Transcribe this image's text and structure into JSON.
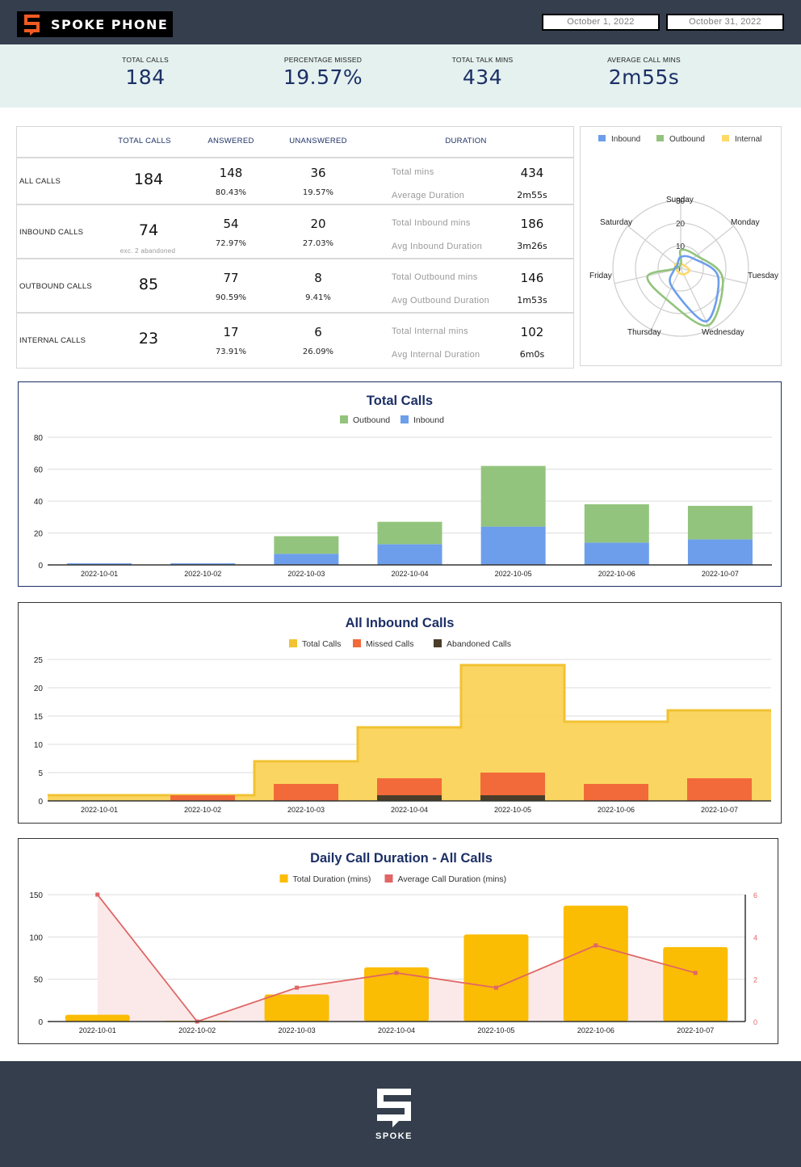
{
  "brand": {
    "name": "SPOKE PHONE",
    "footer_name": "SPOKE",
    "accent": "#f05a22"
  },
  "date_range": {
    "start": "October 1, 2022",
    "end": "October 31, 2022"
  },
  "kpis": [
    {
      "label": "TOTAL CALLS",
      "value": "184"
    },
    {
      "label": "PERCENTAGE MISSED",
      "value": "19.57%"
    },
    {
      "label": "TOTAL TALK MINS",
      "value": "434"
    },
    {
      "label": "AVERAGE CALL MINS",
      "value": "2m55s"
    }
  ],
  "table": {
    "headers": {
      "total": "TOTAL CALLS",
      "answered": "ANSWERED",
      "unanswered": "UNANSWERED",
      "duration": "DURATION"
    },
    "rows": [
      {
        "label": "ALL CALLS",
        "total": "184",
        "note": "",
        "answered": "148",
        "answered_pct": "80.43%",
        "unanswered": "36",
        "unanswered_pct": "19.57%",
        "mins_label": "Total mins",
        "mins": "434",
        "avg_label": "Average Duration",
        "avg": "2m55s"
      },
      {
        "label": "INBOUND CALLS",
        "total": "74",
        "note": "exc. 2 abandoned",
        "answered": "54",
        "answered_pct": "72.97%",
        "unanswered": "20",
        "unanswered_pct": "27.03%",
        "mins_label": "Total Inbound mins",
        "mins": "186",
        "avg_label": "Avg Inbound Duration",
        "avg": "3m26s"
      },
      {
        "label": "OUTBOUND CALLS",
        "total": "85",
        "note": "",
        "answered": "77",
        "answered_pct": "90.59%",
        "unanswered": "8",
        "unanswered_pct": "9.41%",
        "mins_label": "Total Outbound mins",
        "mins": "146",
        "avg_label": "Avg Outbound Duration",
        "avg": "1m53s"
      },
      {
        "label": "INTERNAL CALLS",
        "total": "23",
        "note": "",
        "answered": "17",
        "answered_pct": "73.91%",
        "unanswered": "6",
        "unanswered_pct": "26.09%",
        "mins_label": "Total Internal mins",
        "mins": "102",
        "avg_label": "Avg Internal Duration",
        "avg": "6m0s"
      }
    ]
  },
  "chart_data": [
    {
      "type": "radar",
      "title": "",
      "categories": [
        "Sunday",
        "Monday",
        "Tuesday",
        "Wednesday",
        "Thursday",
        "Friday",
        "Saturday"
      ],
      "rticks": [
        "0",
        "10",
        "20",
        "30"
      ],
      "rlim": [
        0,
        30
      ],
      "legend": "top",
      "series": [
        {
          "name": "Inbound",
          "color": "#6d9eeb",
          "values": [
            5,
            7,
            17,
            26,
            9,
            3,
            2
          ]
        },
        {
          "name": "Outbound",
          "color": "#93c47d",
          "values": [
            8,
            9,
            19,
            28,
            15,
            15,
            1
          ]
        },
        {
          "name": "Internal",
          "color": "#ffd966",
          "values": [
            2,
            2,
            4,
            3,
            2,
            2,
            3
          ]
        }
      ]
    },
    {
      "type": "bar",
      "stacked": true,
      "title": "Total Calls",
      "categories": [
        "2022-10-01",
        "2022-10-02",
        "2022-10-03",
        "2022-10-04",
        "2022-10-05",
        "2022-10-06",
        "2022-10-07"
      ],
      "yticks": [
        "0",
        "20",
        "40",
        "60",
        "80"
      ],
      "ylim": [
        0,
        80
      ],
      "legend": "top",
      "series": [
        {
          "name": "Inbound",
          "color": "#6d9eeb",
          "values": [
            1,
            1,
            7,
            13,
            24,
            14,
            16
          ]
        },
        {
          "name": "Outbound",
          "color": "#93c47d",
          "values": [
            0,
            0,
            11,
            14,
            38,
            24,
            21
          ]
        }
      ],
      "legend_order": [
        "Outbound",
        "Inbound"
      ]
    },
    {
      "type": "area",
      "title": "All Inbound Calls",
      "categories": [
        "2022-10-01",
        "2022-10-02",
        "2022-10-03",
        "2022-10-04",
        "2022-10-05",
        "2022-10-06",
        "2022-10-07"
      ],
      "yticks": [
        "0",
        "5",
        "10",
        "15",
        "20",
        "25"
      ],
      "ylim": [
        0,
        25
      ],
      "legend": "top",
      "series": [
        {
          "name": "Total Calls",
          "color": "#f1c232",
          "fill": "#fbd35a",
          "kind": "stepped-area",
          "values": [
            1,
            1,
            7,
            13,
            24,
            14,
            16
          ]
        },
        {
          "name": "Missed Calls",
          "color": "#f26a3a",
          "kind": "bar",
          "values": [
            0,
            1,
            3,
            4,
            5,
            3,
            4
          ]
        },
        {
          "name": "Abandoned Calls",
          "color": "#4a3d2a",
          "kind": "bar",
          "values": [
            0,
            0,
            0,
            1,
            1,
            0,
            0
          ]
        }
      ]
    },
    {
      "type": "bar",
      "title": "Daily Call Duration - All Calls",
      "categories": [
        "2022-10-01",
        "2022-10-02",
        "2022-10-03",
        "2022-10-04",
        "2022-10-05",
        "2022-10-06",
        "2022-10-07"
      ],
      "yticks": [
        "0",
        "50",
        "100",
        "150"
      ],
      "ylim": [
        0,
        150
      ],
      "y2ticks": [
        "0",
        "2",
        "4",
        "6"
      ],
      "y2lim": [
        0,
        6
      ],
      "legend": "top",
      "series": [
        {
          "name": "Total Duration (mins)",
          "color": "#fbbc04",
          "kind": "bar",
          "axis": "left",
          "values": [
            8,
            1,
            32,
            64,
            103,
            137,
            88
          ]
        },
        {
          "name": "Average Call Duration (mins)",
          "color": "#e06666",
          "kind": "line",
          "axis": "right",
          "values": [
            6,
            0,
            1.6,
            2.3,
            1.6,
            3.6,
            2.3
          ]
        }
      ]
    }
  ]
}
